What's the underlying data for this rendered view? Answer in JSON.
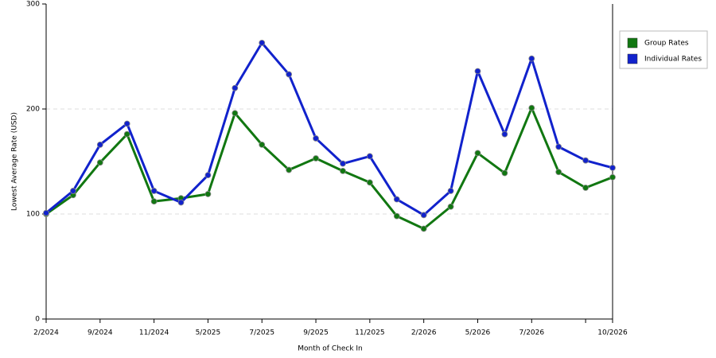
{
  "chart_data": {
    "type": "line",
    "x_label": "Month of Check In",
    "y_label": "Lowest Average Rate (USD)",
    "categories": [
      "2/2024",
      null,
      "9/2024",
      null,
      "11/2024",
      null,
      "5/2025",
      null,
      "7/2025",
      null,
      "9/2025",
      null,
      "11/2025",
      null,
      "2/2026",
      null,
      "5/2026",
      null,
      "7/2026",
      null,
      null,
      "10/2026"
    ],
    "series": [
      {
        "name": "Group Rates",
        "color": "#117711",
        "values": [
          100,
          118,
          149,
          176,
          112,
          115,
          119,
          196,
          166,
          142,
          153,
          141,
          130,
          98,
          86,
          107,
          158,
          139,
          201,
          140,
          125,
          135
        ]
      },
      {
        "name": "Individual Rates",
        "color": "#1122cc",
        "values": [
          101,
          122,
          166,
          186,
          122,
          111,
          137,
          220,
          263,
          233,
          172,
          148,
          155,
          114,
          99,
          122,
          236,
          176,
          248,
          164,
          151,
          144
        ]
      }
    ],
    "ylim": [
      0,
      300
    ],
    "yticks": [
      0,
      100,
      200,
      300
    ],
    "grid": true,
    "legend": "right"
  }
}
